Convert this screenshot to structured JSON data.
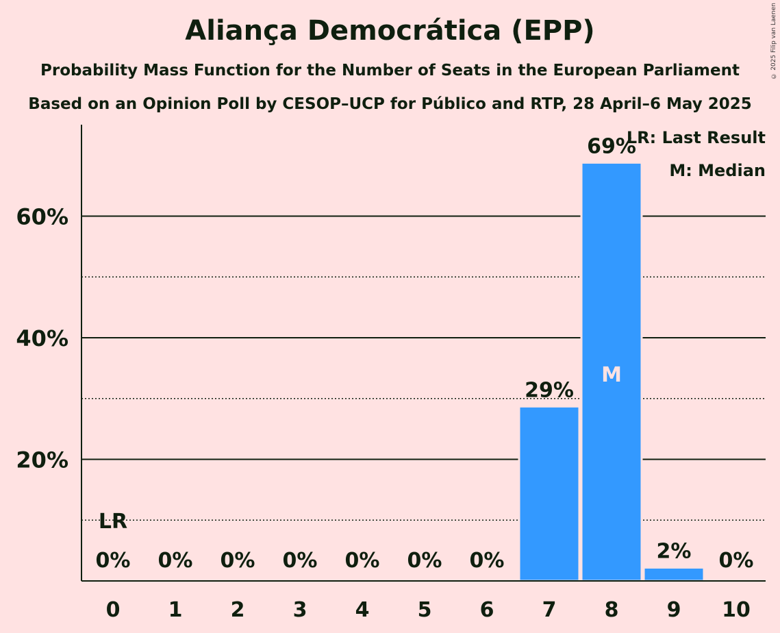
{
  "header": {
    "title": "Aliança Democrática (EPP)",
    "subtitle": "Probability Mass Function for the Number of Seats in the European Parliament",
    "source": "Based on an Opinion Poll by CESOP–UCP for Público and RTP, 28 April–6 May 2025",
    "copyright": "© 2025 Filip van Laenen"
  },
  "chart_data": {
    "type": "bar",
    "categories": [
      "0",
      "1",
      "2",
      "3",
      "4",
      "5",
      "6",
      "7",
      "8",
      "9",
      "10"
    ],
    "values": [
      0,
      0,
      0,
      0,
      0,
      0,
      0,
      28.7,
      68.8,
      2.2,
      0
    ],
    "value_labels": [
      "0%",
      "0%",
      "0%",
      "0%",
      "0%",
      "0%",
      "0%",
      "29%",
      "69%",
      "2%",
      "0%"
    ],
    "ylim": [
      0,
      75
    ],
    "yticks": [
      {
        "value": 20,
        "label": "20%"
      },
      {
        "value": 40,
        "label": "40%"
      },
      {
        "value": 60,
        "label": "60%"
      }
    ],
    "minor_gridlines": [
      10,
      30,
      50
    ],
    "last_result": {
      "category": "0",
      "label": "LR"
    },
    "median": {
      "category": "8",
      "label": "M"
    },
    "legend": [
      "LR: Last Result",
      "M: Median"
    ],
    "legend_position": "top-right",
    "bar_color": "#3399FF",
    "grid": true
  }
}
